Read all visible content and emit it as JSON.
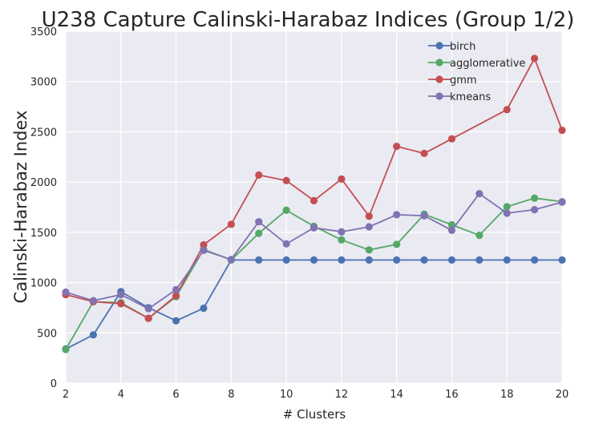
{
  "chart_data": {
    "type": "line",
    "title": "U238 Capture Calinski-Harabaz Indices (Group 1/2)",
    "xlabel": "# Clusters",
    "ylabel": "Calinski-Harabaz Index",
    "xlim": [
      2,
      20
    ],
    "ylim": [
      0,
      3500
    ],
    "xticks": [
      2,
      4,
      6,
      8,
      10,
      12,
      14,
      16,
      18,
      20
    ],
    "yticks": [
      0,
      500,
      1000,
      1500,
      2000,
      2500,
      3000,
      3500
    ],
    "grid": true,
    "legend_position": "top-right",
    "series": [
      {
        "name": "birch",
        "color": "#4c72b0",
        "x": [
          2,
          3,
          4,
          5,
          6,
          7,
          8,
          9,
          10,
          11,
          12,
          13,
          14,
          15,
          16,
          17,
          18,
          19,
          20
        ],
        "y": [
          340,
          480,
          910,
          750,
          620,
          745,
          1225,
          1225,
          1225,
          1225,
          1225,
          1225,
          1225,
          1225,
          1225,
          1225,
          1225,
          1225,
          1225
        ]
      },
      {
        "name": "agglomerative",
        "color": "#55a868",
        "x": [
          2,
          3,
          4,
          5,
          6,
          7,
          8,
          9,
          10,
          11,
          12,
          13,
          14,
          15,
          16,
          17,
          18,
          19,
          20
        ],
        "y": [
          335,
          810,
          800,
          645,
          860,
          1330,
          1225,
          1490,
          1720,
          1560,
          1425,
          1325,
          1380,
          1680,
          1575,
          1470,
          1755,
          1840,
          1805
        ]
      },
      {
        "name": "gmm",
        "color": "#c44e52",
        "x": [
          2,
          3,
          4,
          5,
          6,
          7,
          8,
          9,
          10,
          11,
          12,
          13,
          14,
          15,
          16,
          18,
          19,
          20
        ],
        "y": [
          880,
          810,
          790,
          645,
          870,
          1375,
          1580,
          2070,
          2015,
          1815,
          2030,
          1660,
          2355,
          2285,
          2430,
          2720,
          3230,
          2515
        ]
      },
      {
        "name": "kmeans",
        "color": "#8172b2",
        "x": [
          2,
          3,
          4,
          5,
          6,
          7,
          8,
          9,
          10,
          11,
          12,
          13,
          14,
          15,
          16,
          17,
          18,
          19,
          20
        ],
        "y": [
          905,
          820,
          880,
          740,
          930,
          1320,
          1230,
          1605,
          1385,
          1545,
          1505,
          1555,
          1675,
          1665,
          1520,
          1885,
          1690,
          1725,
          1800
        ]
      }
    ]
  }
}
